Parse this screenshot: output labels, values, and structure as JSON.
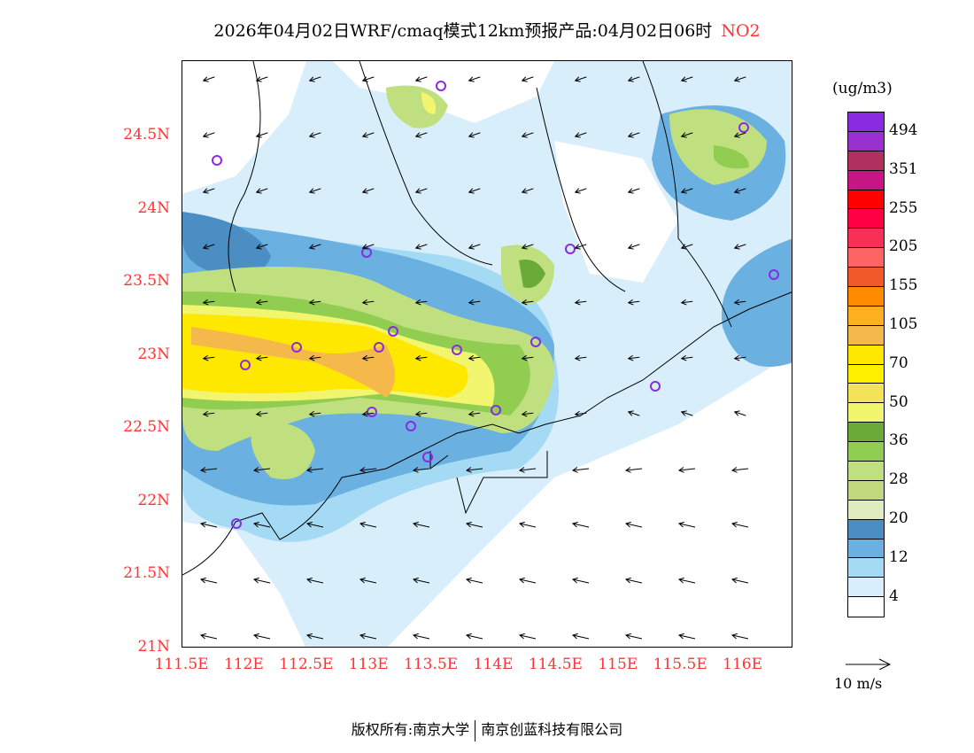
{
  "title": {
    "main": "2026年04月02日WRF/cmaq模式12km预报产品:04月02日06时",
    "species": "NO2"
  },
  "lat_labels": [
    "24.5N",
    "24N",
    "23.5N",
    "23N",
    "22.5N",
    "22N",
    "21.5N",
    "21N"
  ],
  "lon_labels": [
    "111.5E",
    "112E",
    "112.5E",
    "113E",
    "113.5E",
    "114E",
    "114.5E",
    "115E",
    "115.5E",
    "116E"
  ],
  "legend": {
    "unit": "(ug/m3)",
    "colors": [
      "#8a2be2",
      "#9b30d0",
      "#b03060",
      "#c71585",
      "#ff0000",
      "#ff0045",
      "#f83058",
      "#ff6464",
      "#f05a28",
      "#ff8c00",
      "#ffb020",
      "#f5b84a",
      "#ffe800",
      "#fff000",
      "#f2e35a",
      "#f2f56e",
      "#6aaa38",
      "#90cd50",
      "#c0e080",
      "#c2d87c",
      "#e0ebc0",
      "#4a8ec4",
      "#6ab0e0",
      "#a4daf4",
      "#d8eefa",
      "#ffffff"
    ],
    "labels": [
      "494",
      "351",
      "255",
      "205",
      "155",
      "105",
      "70",
      "50",
      "36",
      "28",
      "20",
      "12",
      "4"
    ],
    "ref_vector": "10 m/s"
  },
  "footer": {
    "left": "版权所有:南京大学",
    "right": "南京创蓝科技有限公司"
  }
}
